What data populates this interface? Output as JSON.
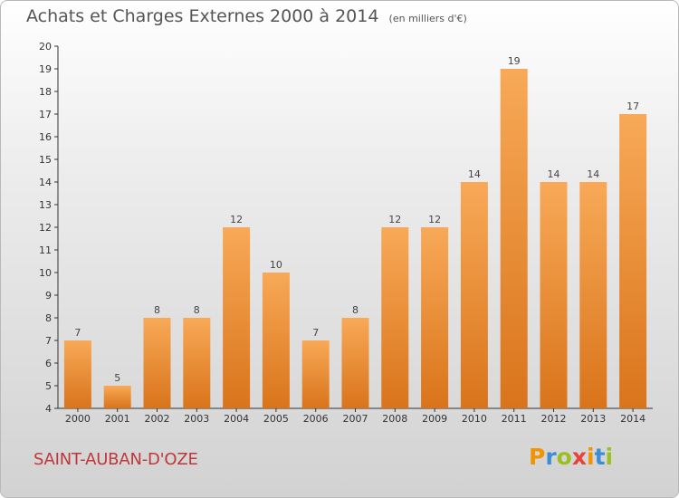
{
  "header": {
    "title": "Achats et Charges Externes 2000 à 2014",
    "unit": "(en milliers d'€)"
  },
  "footer": {
    "commune": "SAINT-AUBAN-D'OZE",
    "brand": "Proxiti",
    "brand_colors": [
      "#f29400",
      "#3a8fd4",
      "#9bbf21",
      "#e8423b",
      "#f29400",
      "#3a8fd4",
      "#9bbf21"
    ]
  },
  "colors": {
    "bar_light": "#f8a957",
    "bar_dark": "#d9741b",
    "axis": "#333333",
    "grid": "#cccccc"
  },
  "chart_data": {
    "type": "bar",
    "title": "Achats et Charges Externes 2000 à 2014",
    "ylabel": "(en milliers d'€)",
    "xlabel": "",
    "ylim": [
      4,
      20
    ],
    "yticks": [
      4,
      5,
      6,
      7,
      8,
      9,
      10,
      11,
      12,
      13,
      14,
      15,
      16,
      17,
      18,
      19,
      20
    ],
    "categories": [
      "2000",
      "2001",
      "2002",
      "2003",
      "2004",
      "2005",
      "2006",
      "2007",
      "2008",
      "2009",
      "2010",
      "2011",
      "2012",
      "2013",
      "2014"
    ],
    "values": [
      7,
      5,
      8,
      8,
      12,
      10,
      7,
      8,
      12,
      12,
      14,
      19,
      14,
      14,
      17
    ],
    "grid": false,
    "legend": "none"
  }
}
